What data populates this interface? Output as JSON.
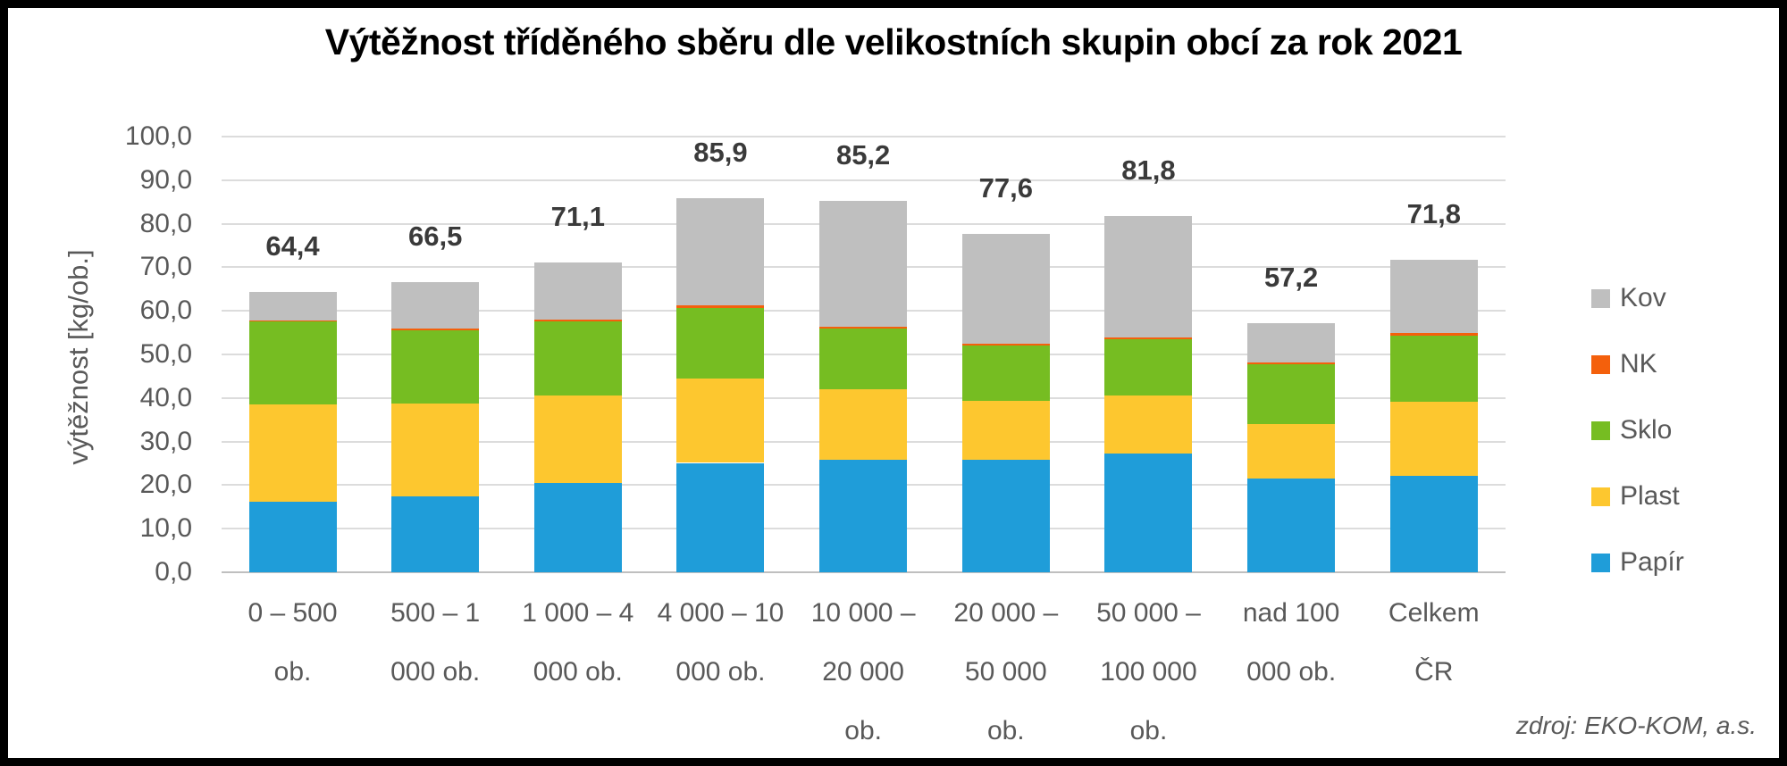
{
  "chart_data": {
    "type": "bar",
    "stacked": true,
    "title": "Výtěžnost tříděného sběru dle velikostních skupin obcí za rok 2021",
    "ylabel": "výtěžnost [kg/ob.]",
    "xlabel": "",
    "source": "zdroj: EKO-KOM, a.s.",
    "ylim": [
      0,
      100
    ],
    "ytick_step": 10,
    "grid": true,
    "legend_position": "right",
    "ytick_labels": [
      "0,0",
      "10,0",
      "20,0",
      "30,0",
      "40,0",
      "50,0",
      "60,0",
      "70,0",
      "80,0",
      "90,0",
      "100,0"
    ],
    "categories": [
      "0 – 500 ob.",
      "500 – 1 000 ob.",
      "1 000 – 4 000 ob.",
      "4 000 – 10 000 ob.",
      "10 000 – 20 000 ob.",
      "20 000 – 50 000 ob.",
      "50 000 – 100 000 ob.",
      "nad 100 000 ob.",
      "Celkem ČR"
    ],
    "category_tick_lines": [
      [
        "0 – 500",
        "ob."
      ],
      [
        "500 – 1",
        "000 ob."
      ],
      [
        "1 000 – 4",
        "000 ob."
      ],
      [
        "4 000 – 10",
        "000 ob."
      ],
      [
        "10 000 –",
        "20 000",
        "ob."
      ],
      [
        "20 000 –",
        "50 000",
        "ob."
      ],
      [
        "50 000 –",
        "100 000",
        "ob."
      ],
      [
        "nad 100",
        "000 ob."
      ],
      [
        "Celkem",
        "ČR"
      ]
    ],
    "series": [
      {
        "name": "Papír",
        "color": "#1f9dd9",
        "values": [
          16.1,
          17.5,
          20.5,
          25.1,
          25.9,
          25.9,
          27.3,
          21.6,
          22.2
        ]
      },
      {
        "name": "Plast",
        "color": "#fdc72f",
        "values": [
          22.5,
          21.3,
          20.1,
          19.3,
          16.1,
          13.4,
          13.3,
          12.5,
          17.0
        ]
      },
      {
        "name": "Sklo",
        "color": "#76bd22",
        "values": [
          18.9,
          16.8,
          17.0,
          16.2,
          13.9,
          12.8,
          12.8,
          13.6,
          15.2
        ]
      },
      {
        "name": "NK",
        "color": "#f4600c",
        "values": [
          0.3,
          0.4,
          0.4,
          0.6,
          0.5,
          0.4,
          0.4,
          0.5,
          0.5
        ]
      },
      {
        "name": "Kov",
        "color": "#bfbfbf",
        "values": [
          6.6,
          10.5,
          13.1,
          24.7,
          28.8,
          25.1,
          28.0,
          9.0,
          16.9
        ]
      }
    ],
    "totals": [
      64.4,
      66.5,
      71.1,
      85.9,
      85.2,
      77.6,
      81.8,
      57.2,
      71.8
    ],
    "totals_display": [
      "64,4",
      "66,5",
      "71,1",
      "85,9",
      "85,2",
      "77,6",
      "81,8",
      "57,2",
      "71,8"
    ]
  },
  "legend": [
    {
      "label": "Kov",
      "color": "#bfbfbf"
    },
    {
      "label": "NK",
      "color": "#f4600c"
    },
    {
      "label": "Sklo",
      "color": "#76bd22"
    },
    {
      "label": "Plast",
      "color": "#fdc72f"
    },
    {
      "label": "Papír",
      "color": "#1f9dd9"
    }
  ],
  "colors": {
    "grid": "#dcdcdc",
    "axis_line": "#bfbfbf",
    "tick_text": "#595959",
    "total_label": "#3a3a3a",
    "title_text": "#000000",
    "background": "#ffffff",
    "frame": "#000000"
  }
}
